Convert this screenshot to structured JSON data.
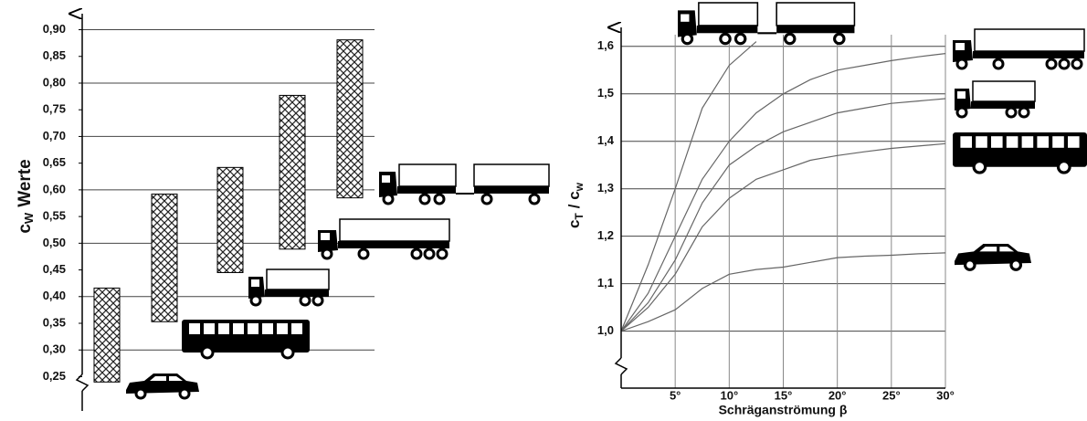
{
  "chart_data": [
    {
      "type": "range_bar",
      "y_label_parts": [
        "c",
        "W",
        "Werte"
      ],
      "categories": [
        null,
        null,
        null,
        null,
        null
      ],
      "low": [
        0.24,
        0.353,
        0.445,
        0.489,
        0.585
      ],
      "high": [
        0.416,
        0.592,
        0.642,
        0.777,
        0.881
      ],
      "color": "#000000",
      "ylim": [
        0.22,
        0.93
      ],
      "yticks": [
        {
          "value": 0.25,
          "label": "0,25"
        },
        {
          "value": 0.3,
          "label": "0,30"
        },
        {
          "value": 0.35,
          "label": "0,35"
        },
        {
          "value": 0.4,
          "label": "0,40"
        },
        {
          "value": 0.45,
          "label": "0,45"
        },
        {
          "value": 0.5,
          "label": "0,50"
        },
        {
          "value": 0.55,
          "label": "0,55"
        },
        {
          "value": 0.6,
          "label": "0,60"
        },
        {
          "value": 0.65,
          "label": "0,65"
        },
        {
          "value": 0.7,
          "label": "0,70"
        },
        {
          "value": 0.75,
          "label": "0,75"
        },
        {
          "value": 0.8,
          "label": "0,80"
        },
        {
          "value": 0.85,
          "label": "0,85"
        },
        {
          "value": 0.9,
          "label": "0,90"
        }
      ]
    },
    {
      "type": "line",
      "y_label_parts": [
        "c",
        "T",
        "/ c",
        "w"
      ],
      "x_label": "Schräganströmung β",
      "x": [
        0,
        2.5,
        5,
        7.5,
        10,
        12.5,
        15,
        17.5,
        20,
        22.5,
        25,
        27.5,
        30
      ],
      "series": [
        {
          "color": "#666666",
          "values": [
            1.0,
            1.14,
            1.3,
            1.47,
            1.56,
            1.61,
            null,
            null,
            null,
            null,
            null,
            null,
            null
          ]
        },
        {
          "color": "#666666",
          "values": [
            1.0,
            1.08,
            1.2,
            1.32,
            1.4,
            1.46,
            1.5,
            1.53,
            1.55,
            1.56,
            1.57,
            1.578,
            1.585
          ]
        },
        {
          "color": "#666666",
          "values": [
            1.0,
            1.06,
            1.15,
            1.27,
            1.35,
            1.39,
            1.42,
            1.44,
            1.46,
            1.47,
            1.48,
            1.485,
            1.49
          ]
        },
        {
          "color": "#666666",
          "values": [
            1.0,
            1.05,
            1.12,
            1.22,
            1.28,
            1.32,
            1.34,
            1.36,
            1.37,
            1.378,
            1.385,
            1.39,
            1.395
          ]
        },
        {
          "color": "#666666",
          "values": [
            1.0,
            1.02,
            1.045,
            1.09,
            1.12,
            1.13,
            1.135,
            1.145,
            1.155,
            1.158,
            1.16,
            1.163,
            1.165
          ]
        }
      ],
      "xlim": [
        0,
        30
      ],
      "xticks": [
        {
          "value": 5,
          "label": "5°"
        },
        {
          "value": 10,
          "label": "10°"
        },
        {
          "value": 15,
          "label": "15°"
        },
        {
          "value": 20,
          "label": "20°"
        },
        {
          "value": 25,
          "label": "25°"
        },
        {
          "value": 30,
          "label": "30°"
        }
      ],
      "ylim": [
        0.88,
        1.64
      ],
      "yticks": [
        {
          "value": 1.0,
          "label": "1,0"
        },
        {
          "value": 1.1,
          "label": "1,1"
        },
        {
          "value": 1.2,
          "label": "1,2"
        },
        {
          "value": 1.3,
          "label": "1,3"
        },
        {
          "value": 1.4,
          "label": "1,4"
        },
        {
          "value": 1.5,
          "label": "1,5"
        },
        {
          "value": 1.6,
          "label": "1,6"
        }
      ],
      "grid": true
    }
  ]
}
